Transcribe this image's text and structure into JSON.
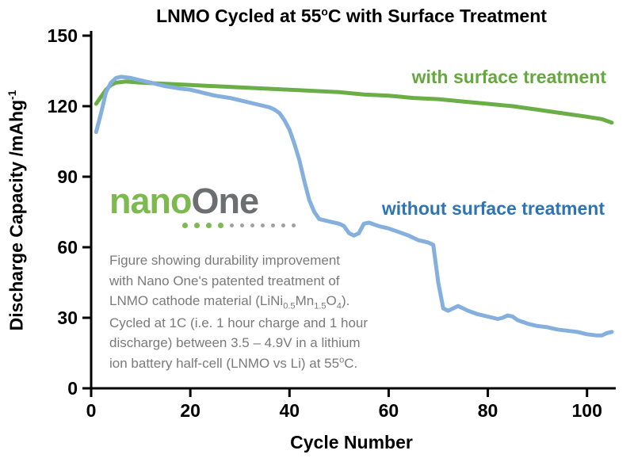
{
  "title": {
    "rich": [
      {
        "t": "LNMO Cycled at 55"
      },
      {
        "t": "o",
        "s": "sup"
      },
      {
        "t": "C with Surface Treatment"
      }
    ]
  },
  "ylabel": {
    "rich": [
      {
        "t": "Discharge Capacity /mAhg"
      },
      {
        "t": "-1",
        "s": "sup"
      }
    ]
  },
  "annotations": {
    "with_label": "with surface treatment",
    "without_label": "without surface treatment"
  },
  "logo": {
    "nano": "nano",
    "one": "One",
    "green_dots": 4,
    "gray_dots": 7
  },
  "caption": {
    "lines": [
      [
        {
          "t": "Figure showing durability improvement"
        }
      ],
      [
        {
          "t": "with Nano One's patented treatment of"
        }
      ],
      [
        {
          "t": "LNMO cathode material (LiNi"
        },
        {
          "t": "0.5",
          "s": "sub"
        },
        {
          "t": "Mn"
        },
        {
          "t": "1.5",
          "s": "sub"
        },
        {
          "t": "O"
        },
        {
          "t": "4",
          "s": "sub"
        },
        {
          "t": ")."
        }
      ],
      [
        {
          "t": "Cycled at 1C (i.e. 1 hour charge and 1 hour"
        }
      ],
      [
        {
          "t": "discharge) between 3.5 – 4.9V in a lithium"
        }
      ],
      [
        {
          "t": "ion battery half-cell (LNMO vs Li) at 55"
        },
        {
          "t": "o",
          "s": "sup"
        },
        {
          "t": "C."
        }
      ]
    ]
  },
  "colors": {
    "green": "#6bad47",
    "green_label": "#64a83f",
    "blue": "#85afdc",
    "blue_label": "#2e74b5",
    "caption_gray": "#7a7a7a",
    "logo_green": "#7cb94e",
    "logo_gray": "#6d6e71",
    "dot_gray": "#9ea0a3",
    "axis": "#000000"
  },
  "chart_data": {
    "type": "line",
    "title": "LNMO Cycled at 55oC with Surface Treatment",
    "xlabel": "Cycle Number",
    "ylabel": "Discharge Capacity /mAhg-1",
    "xlim": [
      0,
      105
    ],
    "ylim": [
      0,
      150
    ],
    "x_ticks": [
      0,
      20,
      40,
      60,
      80,
      100
    ],
    "y_ticks": [
      0,
      30,
      60,
      90,
      120,
      150
    ],
    "grid": false,
    "legend": "in-plot text annotations",
    "series": [
      {
        "name": "with surface treatment",
        "color": "#6bad47",
        "x": [
          1,
          2,
          3,
          4,
          5,
          7,
          10,
          15,
          20,
          25,
          30,
          35,
          40,
          45,
          50,
          55,
          60,
          65,
          70,
          75,
          80,
          85,
          90,
          95,
          100,
          103,
          105
        ],
        "y": [
          121,
          124,
          127,
          129,
          130,
          130.5,
          130,
          129.5,
          129,
          128.5,
          128,
          127.5,
          127,
          126.5,
          126,
          125,
          124.5,
          123.5,
          123,
          122,
          121,
          120,
          118.5,
          117,
          115.5,
          114.5,
          113
        ]
      },
      {
        "name": "without surface treatment",
        "color": "#85afdc",
        "x": [
          1,
          2,
          3,
          4,
          5,
          6,
          8,
          10,
          12,
          15,
          18,
          20,
          22,
          25,
          28,
          30,
          32,
          34,
          36,
          37,
          38,
          39,
          40,
          41,
          42,
          43,
          44,
          45,
          46,
          48,
          50,
          51,
          52,
          53,
          54,
          55,
          56,
          58,
          60,
          62,
          64,
          66,
          68,
          69,
          70,
          71,
          72,
          73,
          74,
          75,
          76,
          78,
          80,
          82,
          83,
          84,
          85,
          86,
          88,
          90,
          92,
          94,
          96,
          98,
          100,
          102,
          103,
          104,
          105
        ],
        "y": [
          109,
          117,
          126,
          130,
          132,
          132.5,
          132,
          131,
          130,
          128.5,
          127.5,
          127,
          126,
          124.5,
          123.5,
          122.5,
          121.5,
          120.5,
          119.5,
          118.5,
          117,
          114,
          110,
          104,
          97,
          88,
          80,
          75,
          72,
          71,
          70,
          69,
          66,
          65,
          66,
          70,
          70.5,
          69,
          68,
          66.5,
          65,
          63,
          62,
          61,
          45,
          34,
          33,
          34,
          35,
          34,
          33,
          31.5,
          30.5,
          29.5,
          30,
          31,
          30.5,
          29,
          27.5,
          26.5,
          26,
          25,
          24.5,
          24,
          23,
          22.5,
          22.5,
          23.5,
          24
        ]
      }
    ]
  }
}
